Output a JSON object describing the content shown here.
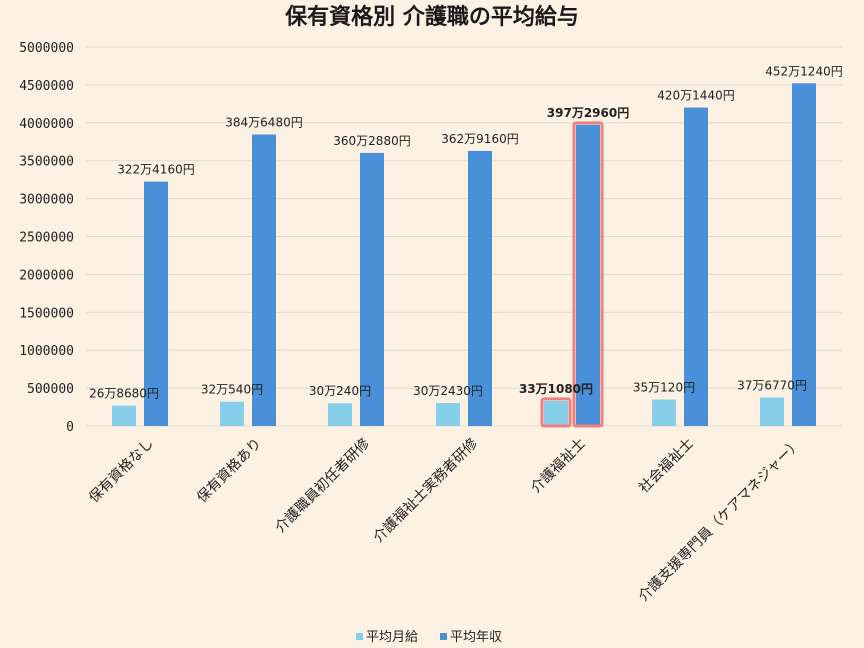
{
  "chart_data": {
    "type": "bar",
    "title": "保有資格別  介護職の平均給与",
    "categories": [
      "保有資格なし",
      "保有資格あり",
      "介護職員初任者研修",
      "介護福祉士実務者研修",
      "介護福祉士",
      "社会福祉士",
      "介護支援専門員（ケアマネジャー）"
    ],
    "series": [
      {
        "name": "平均月給",
        "color": "#87ceeb",
        "values": [
          268680,
          320540,
          300240,
          302430,
          331080,
          350120,
          376770
        ],
        "labels": [
          "26万8680円",
          "32万540円",
          "30万240円",
          "30万2430円",
          "33万1080円",
          "35万120円",
          "37万6770円"
        ]
      },
      {
        "name": "平均年収",
        "color": "#4a90d9",
        "values": [
          3224160,
          3846480,
          3602880,
          3629160,
          3972960,
          4201440,
          4521240
        ],
        "labels": [
          "322万4160円",
          "384万6480円",
          "360万2880円",
          "362万9160円",
          "397万2960円",
          "420万1440円",
          "452万1240円"
        ]
      }
    ],
    "ylim": [
      0,
      5000000
    ],
    "yticks": [
      "0",
      "500000",
      "1000000",
      "1500000",
      "2000000",
      "2500000",
      "3000000",
      "3500000",
      "4000000",
      "4500000",
      "5000000"
    ],
    "grid": true,
    "legend_position": "bottom",
    "highlight_category": "介護福祉士",
    "highlight_color": "#f08080",
    "grid_color": "#dedad6",
    "text_color": "#222222"
  }
}
